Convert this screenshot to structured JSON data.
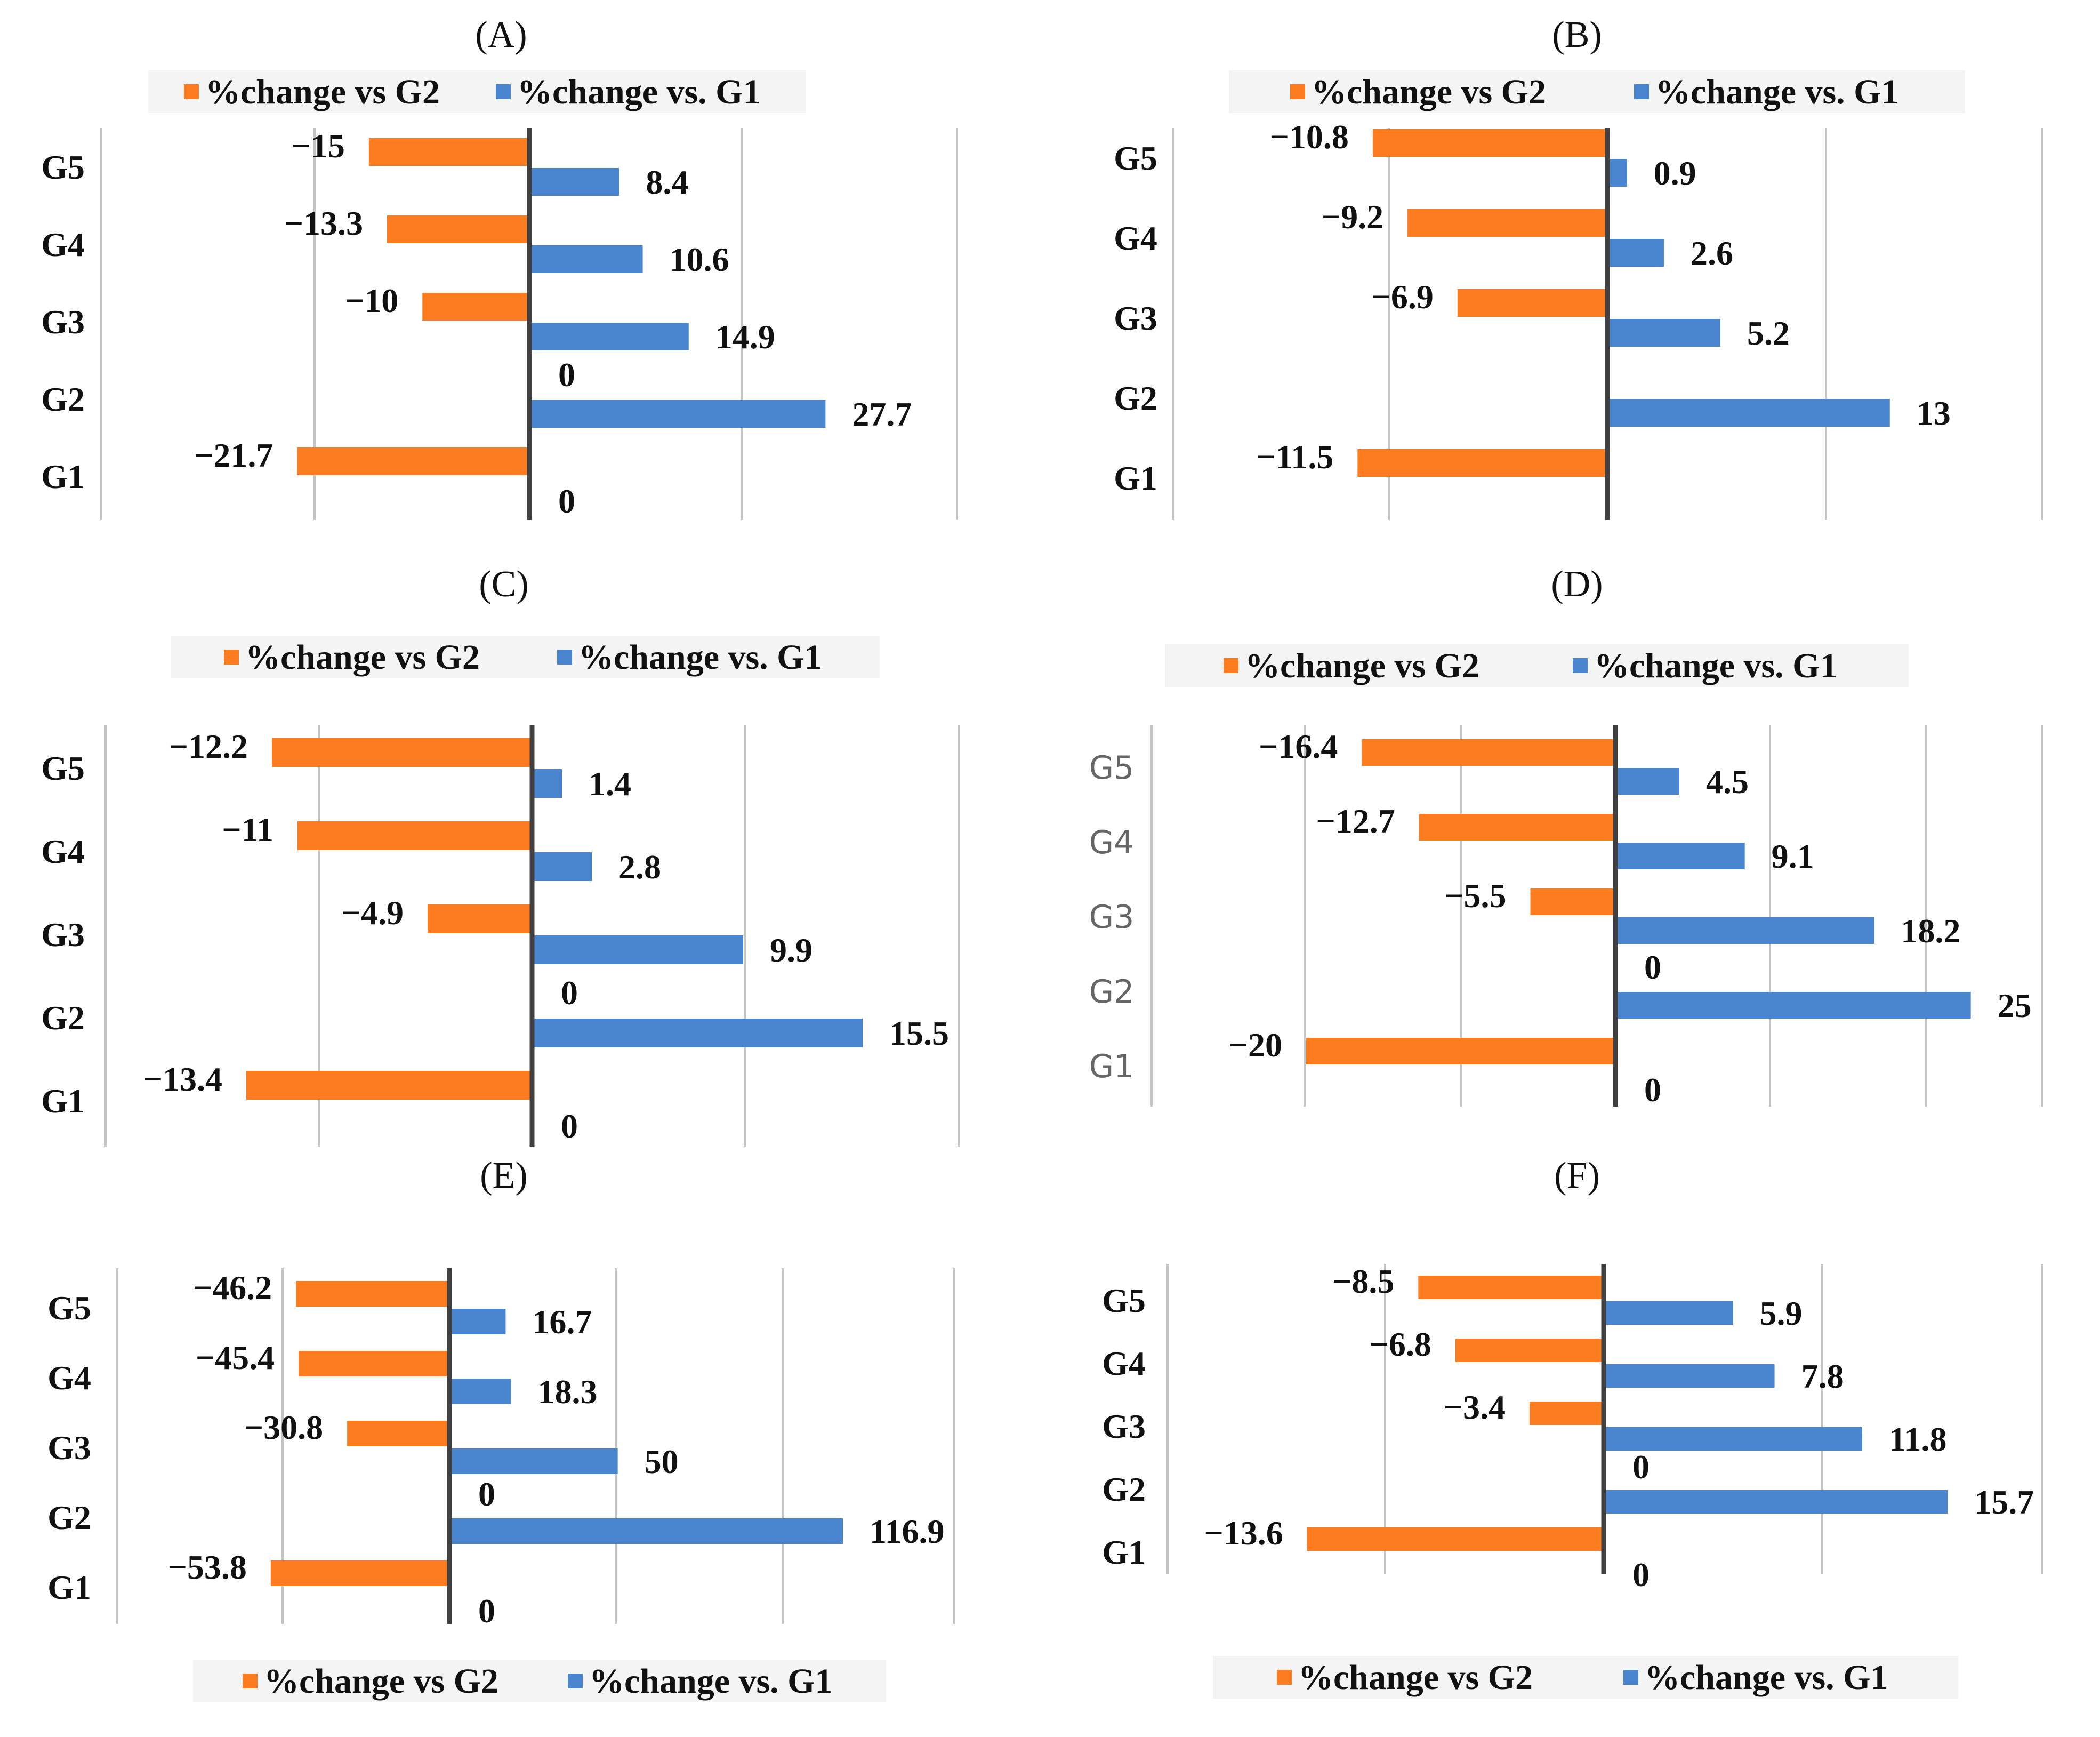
{
  "colors": {
    "vs_g2": "#fe7c20",
    "vs_g1": "#4a86cf",
    "axis": "#404040",
    "grid": "#c4c4c4",
    "legend_bg": "#f4f4f4"
  },
  "legend": {
    "vs_g2": "%change vs G2",
    "vs_g1": "%change vs. G1"
  },
  "chart_data": [
    {
      "type": "bar",
      "orientation": "horizontal",
      "panel": "(A)",
      "categories": [
        "G5",
        "G4",
        "G3",
        "G2",
        "G1"
      ],
      "series": [
        {
          "name": "%change vs G2",
          "values": [
            -15,
            -13.3,
            -10,
            0,
            -21.7
          ],
          "labels": [
            "−15",
            "−13.3",
            "−10",
            "0",
            "−21.7"
          ]
        },
        {
          "name": "%change vs. G1",
          "values": [
            8.4,
            10.6,
            14.9,
            27.7,
            0
          ],
          "labels": [
            "8.4",
            "10.6",
            "14.9",
            "27.7",
            "0"
          ]
        }
      ],
      "xlim": [
        -40,
        40
      ],
      "grid": true,
      "legend_position": "top"
    },
    {
      "type": "bar",
      "orientation": "horizontal",
      "panel": "(B)",
      "categories": [
        "G5",
        "G4",
        "G3",
        "G2",
        "G1"
      ],
      "series": [
        {
          "name": "%change vs G2",
          "values": [
            -10.8,
            -9.2,
            -6.9,
            0,
            -11.5
          ],
          "labels": [
            "−10.8",
            "−9.2",
            "−6.9",
            "",
            "−11.5"
          ]
        },
        {
          "name": "%change vs. G1",
          "values": [
            0.9,
            2.6,
            5.2,
            13,
            0
          ],
          "labels": [
            "0.9",
            "2.6",
            "5.2",
            "13",
            ""
          ]
        }
      ],
      "xlim": [
        -20,
        20
      ],
      "grid": true,
      "legend_position": "top"
    },
    {
      "type": "bar",
      "orientation": "horizontal",
      "panel": "(C)",
      "categories": [
        "G5",
        "G4",
        "G3",
        "G2",
        "G1"
      ],
      "series": [
        {
          "name": "%change vs G2",
          "values": [
            -12.2,
            -11,
            -4.9,
            0,
            -13.4
          ],
          "labels": [
            "−12.2",
            "−11",
            "−4.9",
            "0",
            "−13.4"
          ]
        },
        {
          "name": "%change vs. G1",
          "values": [
            1.4,
            2.8,
            9.9,
            15.5,
            0
          ],
          "labels": [
            "1.4",
            "2.8",
            "9.9",
            "15.5",
            "0"
          ]
        }
      ],
      "xlim": [
        -20,
        20
      ],
      "grid": true,
      "legend_position": "top"
    },
    {
      "type": "bar",
      "orientation": "horizontal",
      "panel": "(D)",
      "categories": [
        "G5",
        "G4",
        "G3",
        "G2",
        "G1"
      ],
      "series": [
        {
          "name": "%change vs G2",
          "values": [
            -16.4,
            -12.7,
            -5.5,
            0,
            -20
          ],
          "labels": [
            "−16.4",
            "−12.7",
            "−5.5",
            "0",
            "−20"
          ]
        },
        {
          "name": "%change vs. G1",
          "values": [
            4.5,
            9.1,
            18.2,
            25,
            0
          ],
          "labels": [
            "4.5",
            "9.1",
            "18.2",
            "25",
            "0"
          ]
        }
      ],
      "xlim": [
        -30,
        30
      ],
      "grid": true,
      "legend_position": "top"
    },
    {
      "type": "bar",
      "orientation": "horizontal",
      "panel": "(E)",
      "categories": [
        "G5",
        "G4",
        "G3",
        "G2",
        "G1"
      ],
      "series": [
        {
          "name": "%change vs G2",
          "values": [
            -46.2,
            -45.4,
            -30.8,
            0,
            -53.8
          ],
          "labels": [
            "−46.2",
            "−45.4",
            "−30.8",
            "0",
            "−53.8"
          ]
        },
        {
          "name": "%change vs. G1",
          "values": [
            16.7,
            18.3,
            50,
            116.9,
            0
          ],
          "labels": [
            "16.7",
            "18.3",
            "50",
            "116.9",
            "0"
          ]
        }
      ],
      "xlim": [
        -100,
        150
      ],
      "grid": true,
      "legend_position": "bottom"
    },
    {
      "type": "bar",
      "orientation": "horizontal",
      "panel": "(F)",
      "categories": [
        "G5",
        "G4",
        "G3",
        "G2",
        "G1"
      ],
      "series": [
        {
          "name": "%change vs G2",
          "values": [
            -8.5,
            -6.8,
            -3.4,
            0,
            -13.6
          ],
          "labels": [
            "−8.5",
            "−6.8",
            "−3.4",
            "0",
            "−13.6"
          ]
        },
        {
          "name": "%change vs. G1",
          "values": [
            5.9,
            7.8,
            11.8,
            15.7,
            0
          ],
          "labels": [
            "5.9",
            "7.8",
            "11.8",
            "15.7",
            "0"
          ]
        }
      ],
      "xlim": [
        -20,
        20
      ],
      "grid": true,
      "legend_position": "bottom"
    }
  ]
}
